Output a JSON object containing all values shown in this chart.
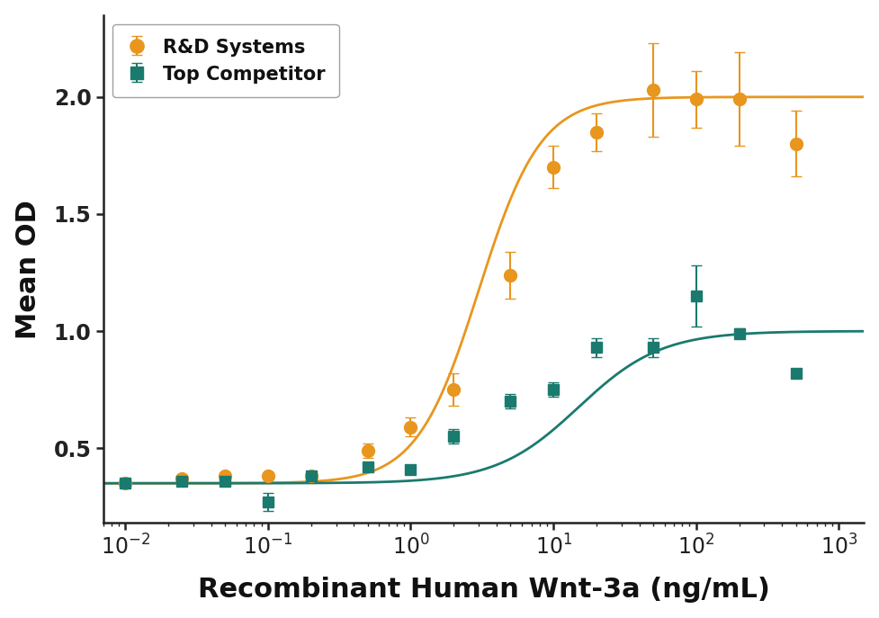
{
  "title": "",
  "xlabel": "Recombinant Human Wnt-3a (ng/mL)",
  "ylabel": "Mean OD",
  "background_color": "#ffffff",
  "orange_color": "#E8961E",
  "teal_color": "#1A7A6E",
  "xlim": [
    0.007,
    1500
  ],
  "ylim": [
    0.18,
    2.35
  ],
  "yticks": [
    0.5,
    1.0,
    1.5,
    2.0
  ],
  "legend_labels": [
    "R&D Systems",
    "Top Competitor"
  ],
  "rd_x": [
    0.01,
    0.025,
    0.05,
    0.1,
    0.2,
    0.5,
    1.0,
    2.0,
    5.0,
    10,
    20,
    50,
    100,
    200,
    500
  ],
  "rd_y": [
    0.35,
    0.37,
    0.38,
    0.38,
    0.38,
    0.49,
    0.59,
    0.75,
    1.24,
    1.7,
    1.85,
    2.03,
    1.99,
    1.99,
    1.8
  ],
  "rd_yerr": [
    0.02,
    0.01,
    0.01,
    0.01,
    0.01,
    0.03,
    0.04,
    0.07,
    0.1,
    0.09,
    0.08,
    0.2,
    0.12,
    0.2,
    0.14
  ],
  "tc_x": [
    0.01,
    0.025,
    0.05,
    0.1,
    0.2,
    0.5,
    1.0,
    2.0,
    5.0,
    10,
    20,
    50,
    100,
    200,
    500
  ],
  "tc_y": [
    0.35,
    0.36,
    0.36,
    0.27,
    0.38,
    0.42,
    0.41,
    0.55,
    0.7,
    0.75,
    0.93,
    0.93,
    1.15,
    0.99,
    0.82
  ],
  "tc_yerr": [
    0.02,
    0.01,
    0.01,
    0.04,
    0.01,
    0.01,
    0.01,
    0.03,
    0.03,
    0.03,
    0.04,
    0.04,
    0.13,
    0.02,
    0.02
  ],
  "xtick_positions": [
    0.01,
    0.1,
    1,
    10,
    100,
    1000
  ],
  "xtick_labels": [
    "$10^{-2}$",
    "$10^{-1}$",
    "$10^{0}$",
    "$10^{1}$",
    "$10^{2}$",
    "$10^{3}$"
  ],
  "xlabel_fontsize": 22,
  "ylabel_fontsize": 22,
  "tick_fontsize": 17,
  "legend_fontsize": 15,
  "marker_size_rd": 10,
  "marker_size_tc": 9,
  "line_width": 2.0,
  "elinewidth": 1.5,
  "capsize": 4
}
